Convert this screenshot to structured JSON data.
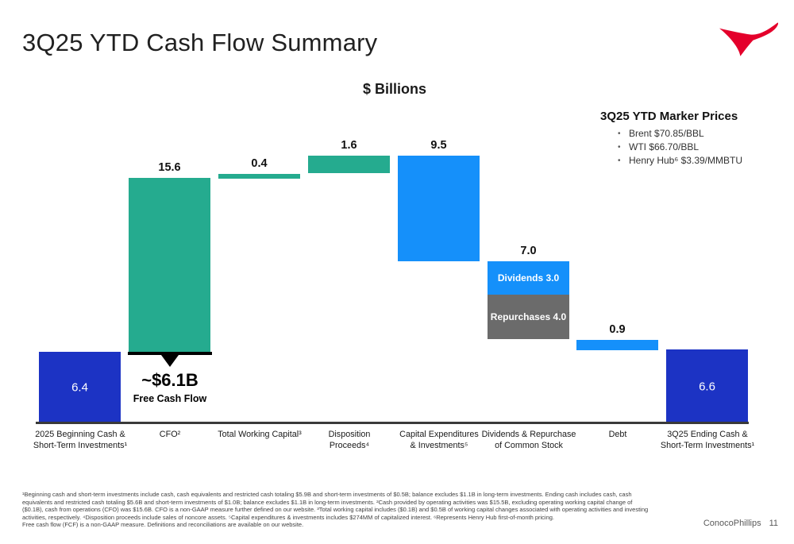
{
  "slide": {
    "title": "3Q25 YTD Cash Flow Summary"
  },
  "colors": {
    "dark_blue": "#1c33c4",
    "teal": "#25ab8f",
    "light_blue": "#1590fa",
    "gray": "#6b6b6b",
    "axis": "#3a3a3a",
    "logo_red": "#e4002b"
  },
  "chart_data": {
    "type": "bar",
    "subtype": "waterfall",
    "title": "$ Billions",
    "ylabel": "",
    "xlabel": "",
    "ylim": [
      0,
      24
    ],
    "grid": false,
    "bars": [
      {
        "id": "beginning-cash",
        "kind": "absolute",
        "value": 6.4,
        "label_inside": "6.4",
        "color_key": "dark_blue",
        "category": "2025 Beginning Cash &\nShort-Term Investments¹"
      },
      {
        "id": "cfo",
        "kind": "increase",
        "value": 15.6,
        "label_above": "15.6",
        "color_key": "teal",
        "category": "CFO²"
      },
      {
        "id": "working-capital",
        "kind": "increase",
        "value": 0.4,
        "label_above": "0.4",
        "color_key": "teal",
        "category": "Total Working Capital³"
      },
      {
        "id": "disposition-proceeds",
        "kind": "increase",
        "value": 1.6,
        "label_above": "1.6",
        "color_key": "teal",
        "category": "Disposition\nProceeds⁴"
      },
      {
        "id": "capex-investments",
        "kind": "decrease",
        "value": 9.5,
        "label_above": "9.5",
        "color_key": "light_blue",
        "category": "Capital Expenditures\n& Investments⁵"
      },
      {
        "id": "dividends-repurchase",
        "kind": "decrease",
        "value": 7.0,
        "label_above": "7.0",
        "category": "Dividends & Repurchase\nof Common Stock",
        "segments": [
          {
            "label": "Dividends 3.0",
            "value": 3.0,
            "color_key": "light_blue"
          },
          {
            "label": "Repurchases 4.0",
            "value": 4.0,
            "color_key": "gray"
          }
        ]
      },
      {
        "id": "debt",
        "kind": "decrease",
        "value": 0.9,
        "label_above": "0.9",
        "color_key": "light_blue",
        "category": "Debt"
      },
      {
        "id": "ending-cash",
        "kind": "absolute",
        "value": 6.6,
        "label_inside": "6.6",
        "color_key": "dark_blue",
        "category": "3Q25 Ending Cash &\nShort-Term Investments¹"
      }
    ],
    "annotation": {
      "anchor_bar": "cfo",
      "value_text": "~$6.1B",
      "caption": "Free Cash Flow"
    }
  },
  "marker_prices": {
    "heading": "3Q25 YTD Marker Prices",
    "items": [
      "Brent $70.85/BBL",
      "WTI $66.70/BBL",
      "Henry Hub⁶ $3.39/MMBTU"
    ]
  },
  "footnotes": [
    "¹Beginning cash and short-term investments include cash, cash equivalents and restricted cash totaling $5.9B and short-term investments of $0.5B; balance excludes $1.1B in long-term investments. Ending cash includes cash, cash",
    "equivalents and restricted cash totaling $5.6B and short-term investments of $1.0B; balance excludes $1.1B in long-term investments. ²Cash provided by operating activities was $15.5B, excluding operating working capital change of",
    "($0.1B), cash from operations (CFO) was $15.6B. CFO is a non-GAAP measure further defined on our website. ³Total working capital includes ($0.1B) and $0.5B of working capital changes associated with operating activities and investing",
    "activities, respectively. ⁴Disposition proceeds include sales of noncore assets. ⁵Capital expenditures & investments includes $274MM of capitalized interest. ⁶Represents Henry Hub first-of-month pricing.",
    "Free cash flow (FCF) is a non-GAAP measure. Definitions and reconciliations are available on our website."
  ],
  "footer": {
    "brand": "ConocoPhillips",
    "page_number": "11"
  }
}
